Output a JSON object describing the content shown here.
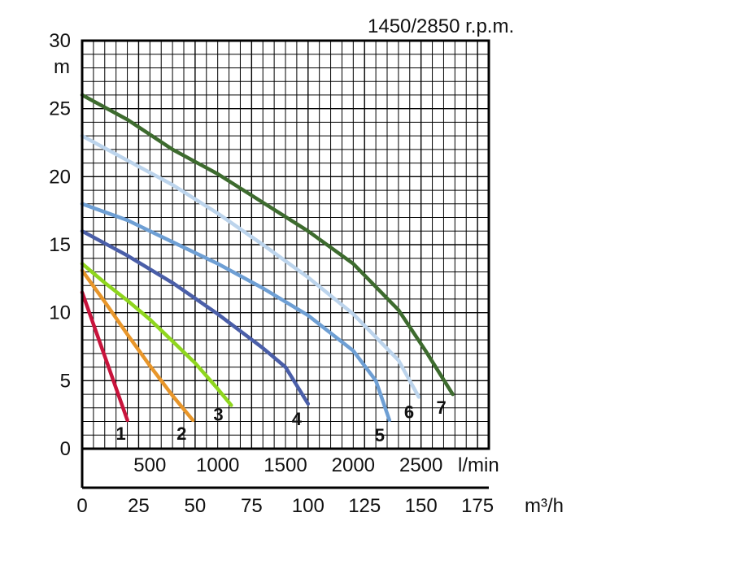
{
  "chart_data": {
    "type": "line",
    "title": "1450/2850 r.p.m.",
    "ylabel": "m",
    "xlabel": "m³/h",
    "x2label": "l/min",
    "ylim": [
      0,
      30
    ],
    "xlim": [
      0,
      180
    ],
    "grid": true,
    "y_ticks": [
      "0",
      "5",
      "10",
      "15",
      "20",
      "25",
      "30"
    ],
    "x_ticks": [
      "0",
      "25",
      "50",
      "75",
      "100",
      "125",
      "150",
      "175"
    ],
    "x2_ticks": [
      "500",
      "1000",
      "1500",
      "2000",
      "2500"
    ],
    "series": [
      {
        "name": "1",
        "color": "#c8143c",
        "x": [
          0,
          10,
          20
        ],
        "y": [
          11.5,
          6.8,
          2.1
        ]
      },
      {
        "name": "2",
        "color": "#e8962a",
        "x": [
          0,
          10,
          20,
          30,
          40,
          49
        ],
        "y": [
          13.1,
          10.8,
          8.4,
          6.1,
          3.9,
          2.1
        ]
      },
      {
        "name": "3",
        "color": "#8fd61e",
        "x": [
          0,
          10,
          20,
          30,
          40,
          50,
          60,
          66
        ],
        "y": [
          13.6,
          12.2,
          10.9,
          9.5,
          7.9,
          6.3,
          4.4,
          3.2
        ]
      },
      {
        "name": "4",
        "color": "#4a5ea8",
        "x": [
          0,
          20,
          40,
          60,
          80,
          90,
          100
        ],
        "y": [
          16.0,
          14.2,
          12.2,
          9.9,
          7.4,
          6.0,
          3.3
        ]
      },
      {
        "name": "5",
        "color": "#6e9fd4",
        "x": [
          0,
          20,
          40,
          60,
          80,
          100,
          120,
          130,
          136
        ],
        "y": [
          18.0,
          16.8,
          15.2,
          13.6,
          11.8,
          9.8,
          7.2,
          5.0,
          2.1
        ]
      },
      {
        "name": "6",
        "color": "#bcd4ec",
        "x": [
          0,
          20,
          40,
          60,
          80,
          100,
          120,
          140,
          149
        ],
        "y": [
          23.0,
          21.2,
          19.4,
          17.3,
          15.0,
          12.6,
          9.9,
          6.5,
          3.8
        ]
      },
      {
        "name": "7",
        "color": "#3d6b2e",
        "x": [
          0,
          20,
          40,
          60,
          80,
          100,
          120,
          140,
          152,
          164
        ],
        "y": [
          26.0,
          24.2,
          22.0,
          20.2,
          18.1,
          16.0,
          13.6,
          10.2,
          7.2,
          4.0
        ]
      }
    ]
  }
}
